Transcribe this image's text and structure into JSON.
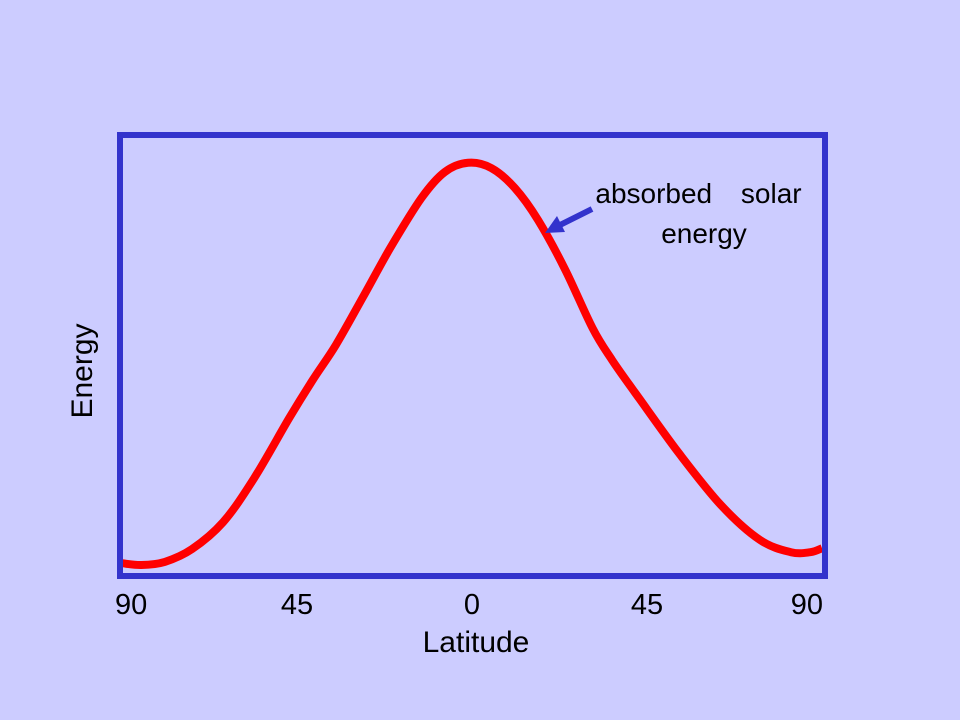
{
  "chart_data": {
    "type": "line",
    "xlabel": "Latitude",
    "ylabel": "Energy",
    "xlim": [
      -90,
      90
    ],
    "ylim": [
      0,
      100
    ],
    "grid": false,
    "x_ticks": [
      {
        "value": -90,
        "label": "90"
      },
      {
        "value": -45,
        "label": "45"
      },
      {
        "value": 0,
        "label": "0"
      },
      {
        "value": 45,
        "label": "45"
      },
      {
        "value": 90,
        "label": "90"
      }
    ],
    "series": [
      {
        "x": [
          -90,
          -85,
          -79,
          -72,
          -64,
          -56,
          -47,
          -41,
          -35,
          -28,
          -21,
          -13,
          -7,
          -1,
          5,
          11,
          17,
          24,
          31,
          36,
          42,
          53,
          64,
          74,
          82,
          87,
          90
        ],
        "y": [
          2.9,
          2.5,
          3.2,
          6.1,
          12.2,
          22.2,
          35.8,
          44.4,
          52.4,
          63.3,
          74.4,
          85.7,
          91.6,
          93.7,
          92.5,
          88.0,
          80.7,
          69.4,
          56.2,
          49.0,
          41.5,
          28.1,
          16.1,
          8.2,
          5.4,
          5.4,
          6.3
        ]
      }
    ],
    "annotation": {
      "lines": [
        "absorbed solar",
        "energy"
      ]
    },
    "colors": {
      "background": "#ccccff",
      "frame": "#3333cc",
      "arrow": "#3333cc",
      "line": "#ff0000",
      "text": "#000000"
    }
  }
}
